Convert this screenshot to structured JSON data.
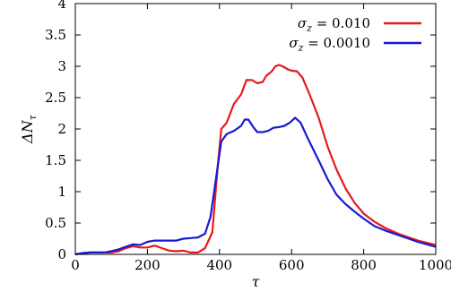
{
  "chart_data": {
    "type": "line",
    "xlabel": "τ",
    "ylabel": "ΔN",
    "ylabel_sub": "τ",
    "xlim": [
      0,
      1000
    ],
    "ylim": [
      0,
      4
    ],
    "xticks": [
      0,
      200,
      400,
      600,
      800,
      1000
    ],
    "xtick_labels": [
      "0",
      "200",
      "400",
      "600",
      "800",
      "1000"
    ],
    "yticks": [
      0,
      0.5,
      1,
      1.5,
      2,
      2.5,
      3,
      3.5,
      4
    ],
    "ytick_labels": [
      "0",
      "0.5",
      "1",
      "1.5",
      "2",
      "2.5",
      "3",
      "3.5",
      "4"
    ],
    "grid": false,
    "legend_position": "top-right",
    "series": [
      {
        "name": "σz = 0.010",
        "name_symbol": "σ",
        "name_sub": "z",
        "name_rest": " = 0.010",
        "color": "#e8191b",
        "x": [
          0,
          20,
          40,
          60,
          80,
          100,
          120,
          140,
          160,
          180,
          200,
          220,
          240,
          260,
          280,
          300,
          320,
          340,
          360,
          380,
          395,
          405,
          420,
          440,
          460,
          475,
          490,
          505,
          520,
          530,
          545,
          555,
          565,
          575,
          590,
          600,
          615,
          630,
          650,
          675,
          700,
          725,
          750,
          775,
          800,
          830,
          860,
          900,
          950,
          1000
        ],
        "y": [
          0,
          0.02,
          0.03,
          0.03,
          0.03,
          0.03,
          0.05,
          0.1,
          0.13,
          0.11,
          0.11,
          0.14,
          0.1,
          0.06,
          0.05,
          0.06,
          0.03,
          0.03,
          0.1,
          0.35,
          1.4,
          2.0,
          2.1,
          2.4,
          2.55,
          2.78,
          2.78,
          2.73,
          2.75,
          2.85,
          2.92,
          3.0,
          3.02,
          3.0,
          2.95,
          2.93,
          2.92,
          2.82,
          2.55,
          2.18,
          1.72,
          1.35,
          1.05,
          0.82,
          0.65,
          0.52,
          0.42,
          0.32,
          0.22,
          0.15
        ]
      },
      {
        "name": "σz = 0.0010",
        "name_symbol": "σ",
        "name_sub": "z",
        "name_rest": " = 0.0010",
        "color": "#1919d2",
        "x": [
          0,
          20,
          40,
          60,
          80,
          100,
          120,
          140,
          160,
          180,
          200,
          220,
          240,
          260,
          280,
          300,
          320,
          340,
          360,
          375,
          385,
          395,
          405,
          420,
          440,
          460,
          470,
          480,
          495,
          505,
          520,
          535,
          550,
          565,
          580,
          595,
          610,
          625,
          645,
          675,
          700,
          725,
          750,
          775,
          800,
          830,
          860,
          900,
          950,
          1000
        ],
        "y": [
          0,
          0.02,
          0.03,
          0.03,
          0.03,
          0.05,
          0.08,
          0.12,
          0.16,
          0.15,
          0.2,
          0.22,
          0.22,
          0.22,
          0.22,
          0.25,
          0.26,
          0.27,
          0.33,
          0.6,
          1.0,
          1.4,
          1.8,
          1.92,
          1.97,
          2.05,
          2.15,
          2.15,
          2.02,
          1.95,
          1.95,
          1.97,
          2.02,
          2.03,
          2.05,
          2.1,
          2.18,
          2.1,
          1.85,
          1.5,
          1.2,
          0.95,
          0.8,
          0.68,
          0.57,
          0.45,
          0.38,
          0.3,
          0.2,
          0.12
        ]
      }
    ]
  }
}
